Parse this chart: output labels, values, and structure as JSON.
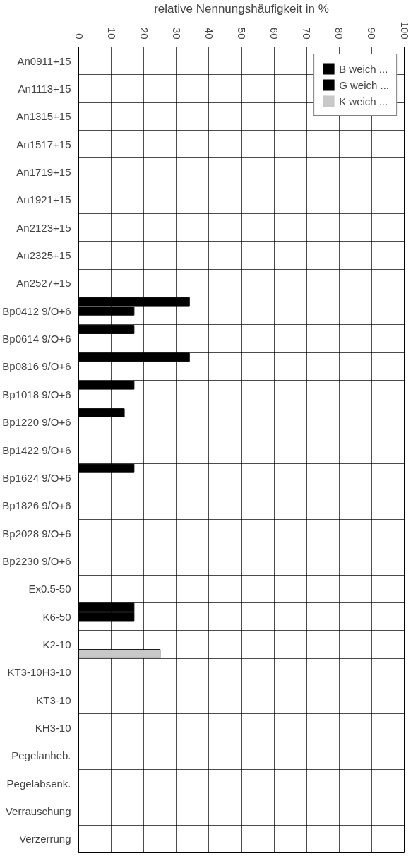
{
  "chart_data": {
    "type": "bar",
    "orientation": "horizontal",
    "xlabel": "relative Nennungshäufigkeit in %",
    "categories": [
      "An0911+15",
      "An1113+15",
      "An1315+15",
      "An1517+15",
      "An1719+15",
      "An1921+15",
      "An2123+15",
      "An2325+15",
      "An2527+15",
      "Bp0412 9/O+6",
      "Bp0614 9/O+6",
      "Bp0816 9/O+6",
      "Bp1018 9/O+6",
      "Bp1220 9/O+6",
      "Bp1422 9/O+6",
      "Bp1624 9/O+6",
      "Bp1826 9/O+6",
      "Bp2028 9/O+6",
      "Bp2230 9/O+6",
      "Ex0.5-50",
      "K6-50",
      "K2-10",
      "KT3-10H3-10",
      "KT3-10",
      "KH3-10",
      "Pegelanheb.",
      "Pegelabsenk.",
      "Verrauschung",
      "Verzerrung"
    ],
    "series": [
      {
        "name": "B weich ...",
        "color": "#000000",
        "values": [
          0,
          0,
          0,
          0,
          0,
          0,
          0,
          0,
          0,
          34,
          17,
          34,
          17,
          14,
          0,
          17,
          0,
          0,
          0,
          0,
          17,
          0,
          0,
          0,
          0,
          0,
          0,
          0,
          0
        ]
      },
      {
        "name": "G weich ...",
        "color": "#000000",
        "values": [
          0,
          0,
          0,
          0,
          0,
          0,
          0,
          0,
          0,
          17,
          0,
          0,
          0,
          0,
          0,
          0,
          0,
          0,
          0,
          0,
          17,
          0,
          0,
          0,
          0,
          0,
          0,
          0,
          0
        ]
      },
      {
        "name": "K weich ...",
        "color": "#c8c8c8",
        "values": [
          0,
          0,
          0,
          0,
          0,
          0,
          0,
          0,
          0,
          0,
          0,
          0,
          0,
          0,
          0,
          0,
          0,
          0,
          0,
          0,
          0,
          25,
          0,
          0,
          0,
          0,
          0,
          0,
          0
        ]
      }
    ],
    "xlim": [
      0,
      100
    ],
    "xticks": [
      0,
      10,
      20,
      30,
      40,
      50,
      60,
      70,
      80,
      90,
      100
    ],
    "grid": true,
    "legend": "top right"
  }
}
